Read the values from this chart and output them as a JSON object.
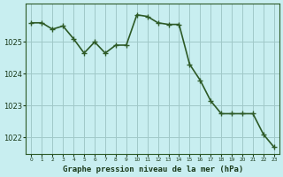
{
  "x": [
    0,
    1,
    2,
    3,
    4,
    5,
    6,
    7,
    8,
    9,
    10,
    11,
    12,
    13,
    14,
    15,
    16,
    17,
    18,
    19,
    20,
    21,
    22,
    23
  ],
  "y": [
    1025.6,
    1025.6,
    1025.4,
    1025.5,
    1025.1,
    1024.65,
    1025.0,
    1024.65,
    1024.9,
    1024.9,
    1025.85,
    1025.8,
    1025.6,
    1025.55,
    1025.55,
    1024.3,
    1023.8,
    1023.15,
    1022.75,
    1022.75,
    1022.75,
    1022.75,
    1022.1,
    1021.7
  ],
  "line_color": "#2d5a27",
  "marker": "+",
  "background_color": "#c8eef0",
  "grid_color": "#a0c8c8",
  "xlabel": "Graphe pression niveau de la mer (hPa)",
  "xlabel_color": "#1a3a1a",
  "tick_color": "#1a3a1a",
  "ylim": [
    1021.5,
    1026.2
  ],
  "yticks": [
    1022,
    1023,
    1024,
    1025
  ],
  "xticks": [
    0,
    1,
    2,
    3,
    4,
    5,
    6,
    7,
    8,
    9,
    10,
    11,
    12,
    13,
    14,
    15,
    16,
    17,
    18,
    19,
    20,
    21,
    22,
    23
  ],
  "linewidth": 1.2,
  "markersize": 4,
  "spine_color": "#2d5a27"
}
